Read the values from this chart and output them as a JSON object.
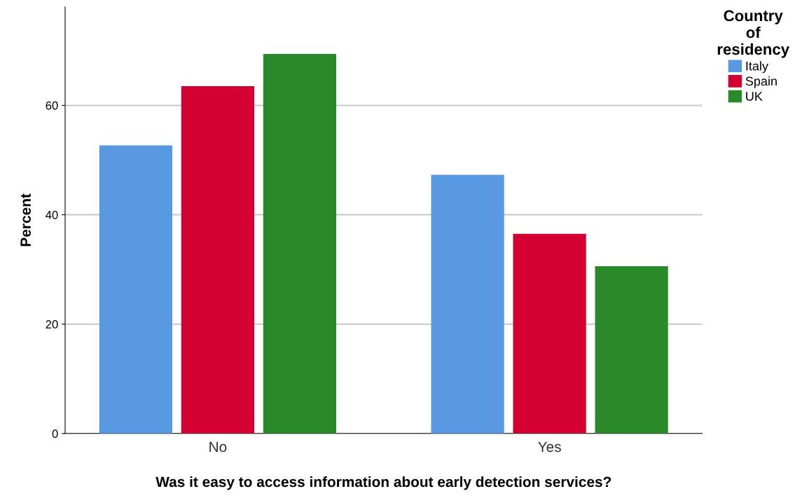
{
  "chart_data": {
    "type": "bar",
    "xlabel": "Was it easy to access information about early detection services?",
    "ylabel": "Percent",
    "legend_title": "Country\nof\nresidency",
    "categories": [
      "No",
      "Yes"
    ],
    "series": [
      {
        "name": "Italy",
        "color": "#5899e2",
        "values": [
          52.7,
          47.3
        ]
      },
      {
        "name": "Spain",
        "color": "#d50032",
        "values": [
          63.5,
          36.5
        ]
      },
      {
        "name": "UK",
        "color": "#2a8a2a",
        "values": [
          69.4,
          30.6
        ]
      }
    ],
    "ylim": [
      0,
      78
    ],
    "yticks": [
      0,
      20,
      40,
      60
    ],
    "grid": "y",
    "legend": "top right"
  }
}
